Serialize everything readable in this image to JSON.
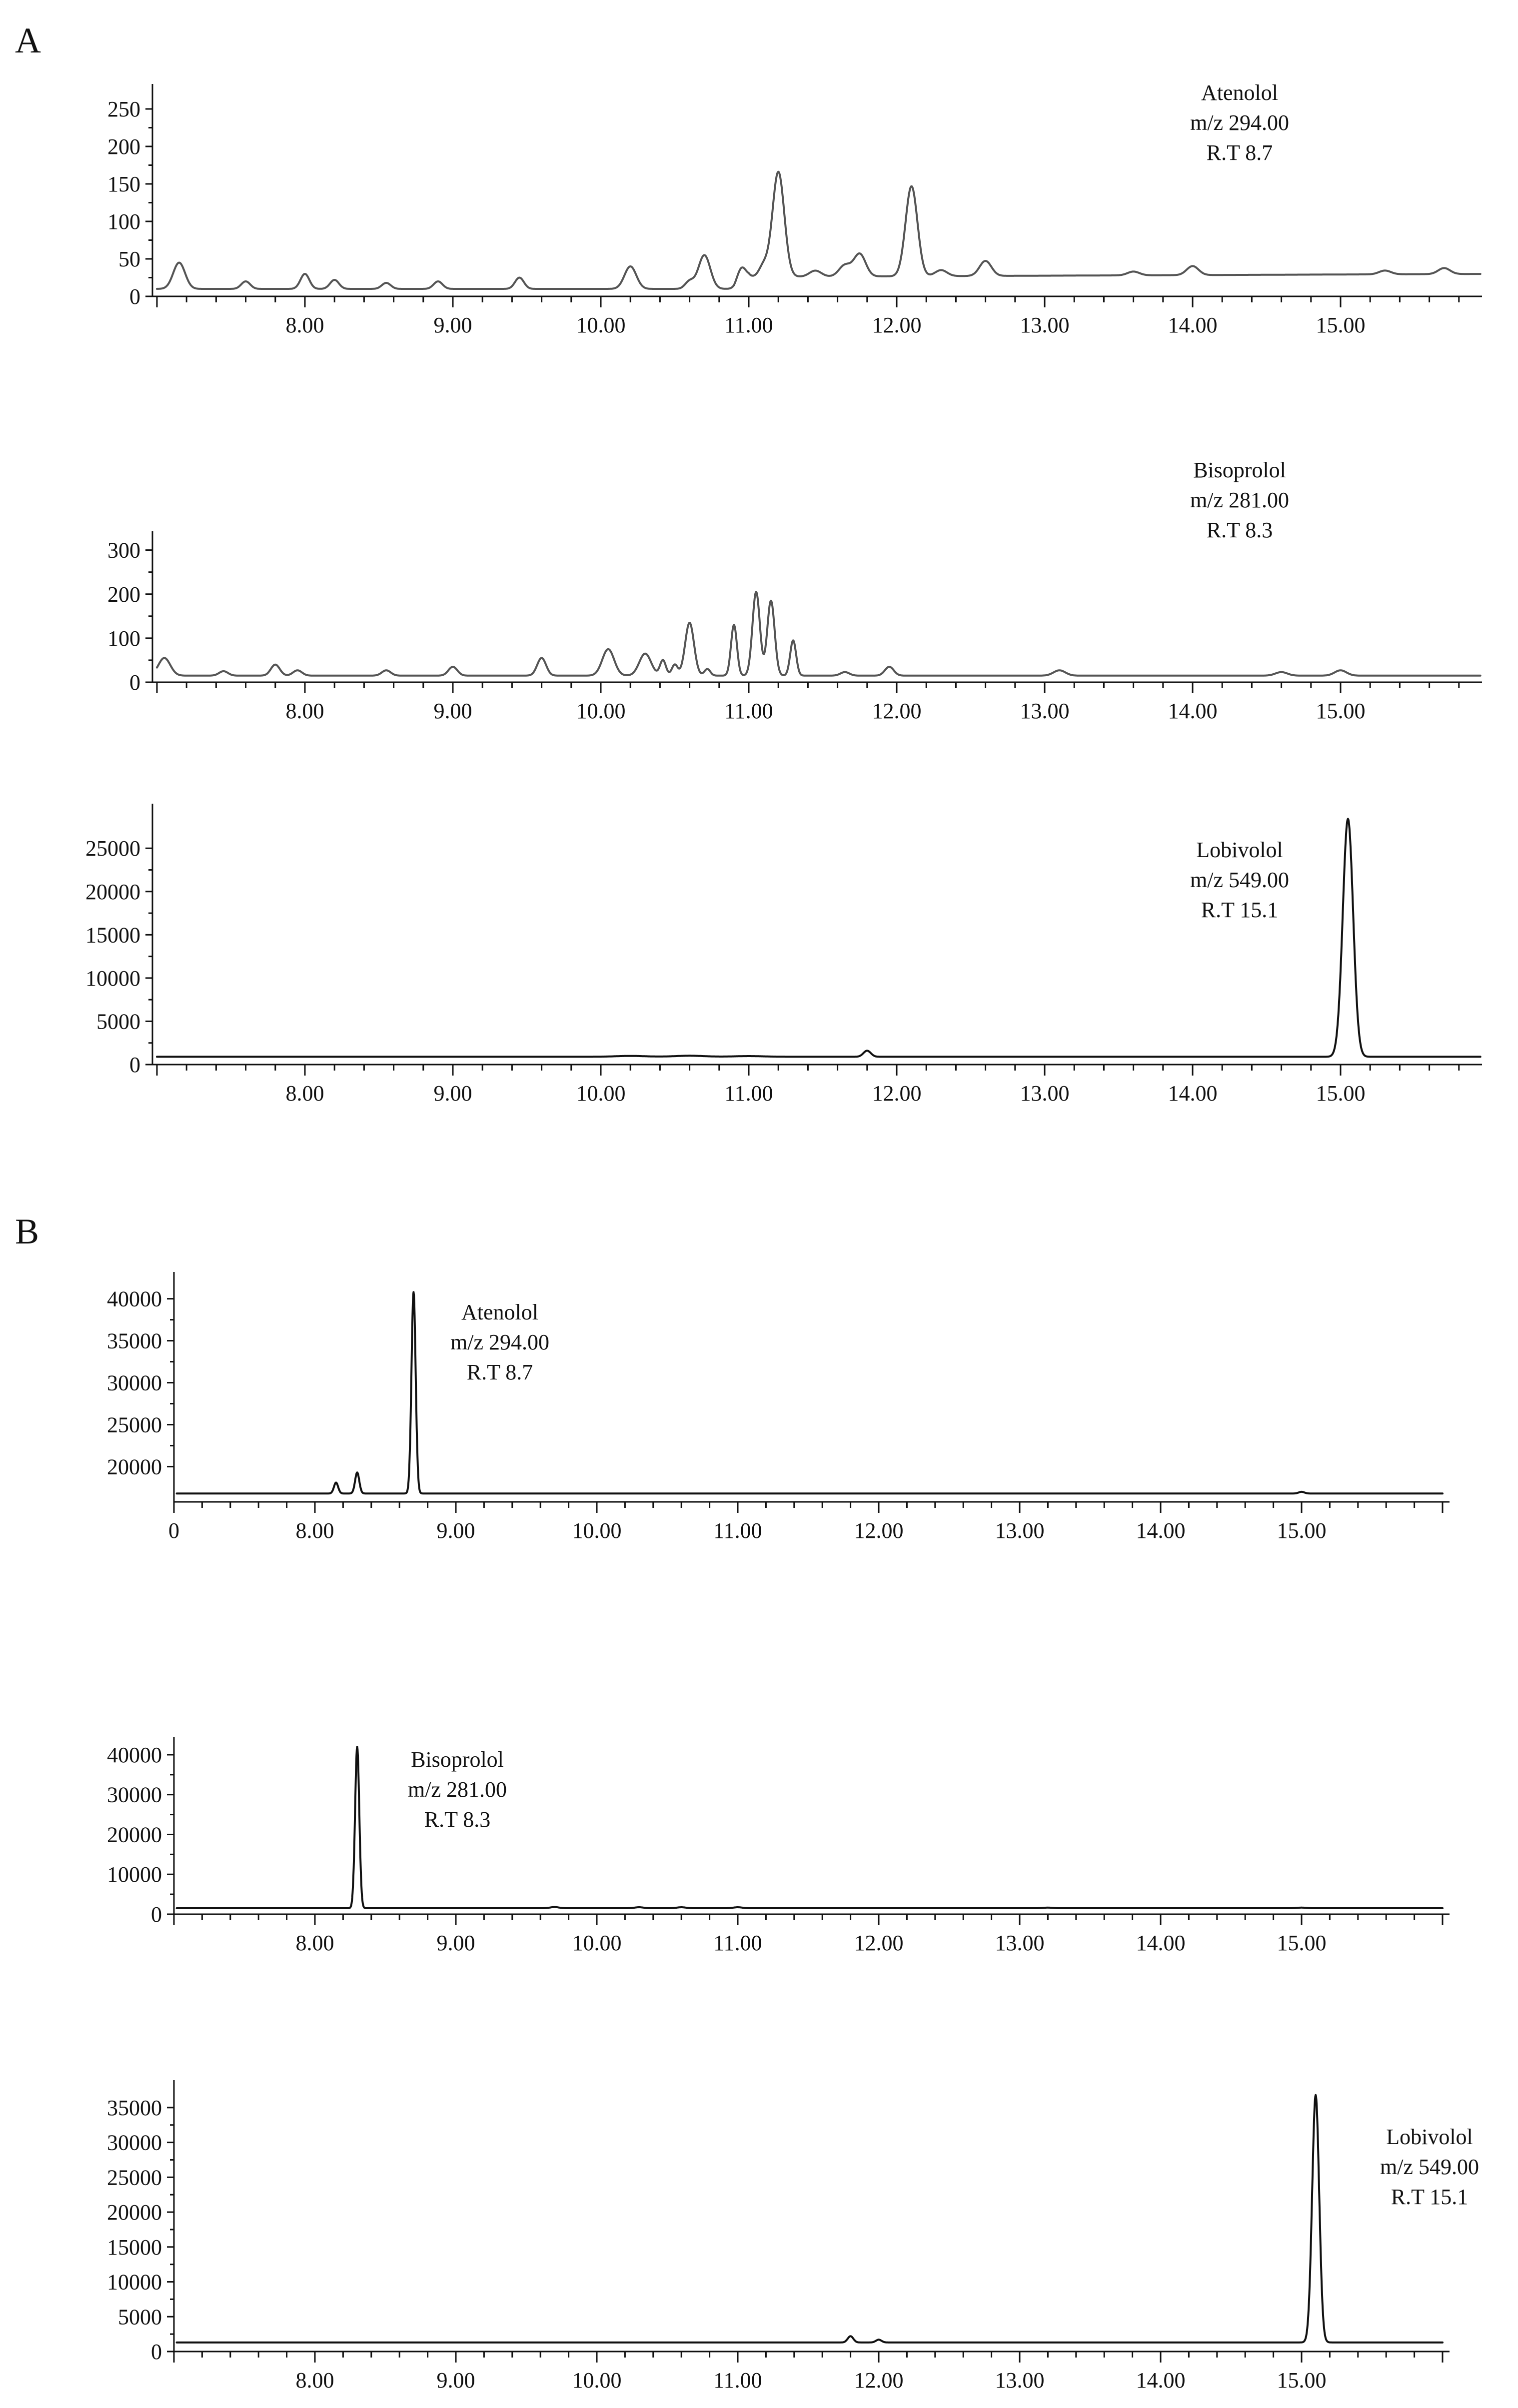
{
  "panels": [
    {
      "label": "A"
    },
    {
      "label": "B"
    }
  ],
  "chart_data": [
    {
      "type": "line",
      "panel": "A",
      "x_ticks": [
        "8.00",
        "9.00",
        "10.00",
        "11.00",
        "12.00",
        "13.00",
        "14.00",
        "15.00"
      ],
      "y_ticks": [
        "0",
        "50",
        "100",
        "150",
        "200",
        "250"
      ],
      "xlim": [
        7.0,
        16.0
      ],
      "ylim": [
        0,
        270
      ],
      "line_color": "#555555",
      "annotation": [
        "Atenolol",
        "m/z 294.00",
        "R.T 8.7"
      ],
      "series": [
        {
          "baseline": [
            [
              7.0,
              10
            ],
            [
              10.9,
              10
            ],
            [
              11.0,
              26
            ],
            [
              16.0,
              30
            ]
          ],
          "peaks": [
            [
              7.15,
              35,
              0.04
            ],
            [
              7.6,
              10,
              0.03
            ],
            [
              8.0,
              20,
              0.03
            ],
            [
              8.2,
              12,
              0.03
            ],
            [
              8.55,
              8,
              0.03
            ],
            [
              8.9,
              10,
              0.03
            ],
            [
              9.45,
              15,
              0.03
            ],
            [
              10.2,
              30,
              0.04
            ],
            [
              10.6,
              10,
              0.03
            ],
            [
              10.7,
              45,
              0.04
            ],
            [
              10.95,
              20,
              0.03
            ],
            [
              11.1,
              15,
              0.03
            ],
            [
              11.2,
              140,
              0.04
            ],
            [
              11.45,
              8,
              0.04
            ],
            [
              11.65,
              15,
              0.04
            ],
            [
              11.75,
              30,
              0.04
            ],
            [
              12.1,
              120,
              0.04
            ],
            [
              12.3,
              8,
              0.04
            ],
            [
              12.6,
              20,
              0.04
            ],
            [
              13.6,
              5,
              0.04
            ],
            [
              14.0,
              12,
              0.04
            ],
            [
              15.3,
              5,
              0.04
            ],
            [
              15.7,
              8,
              0.04
            ]
          ]
        }
      ]
    },
    {
      "type": "line",
      "panel": "A",
      "x_ticks": [
        "8.00",
        "9.00",
        "10.00",
        "11.00",
        "12.00",
        "13.00",
        "14.00",
        "15.00"
      ],
      "y_ticks": [
        "0",
        "100",
        "200",
        "300"
      ],
      "xlim": [
        7.0,
        16.0
      ],
      "ylim": [
        0,
        320
      ],
      "line_color": "#555555",
      "annotation": [
        "Bisoprolol",
        "m/z 281.00",
        "R.T 8.3"
      ],
      "series": [
        {
          "baseline": [
            [
              7.0,
              15
            ],
            [
              16.0,
              15
            ]
          ],
          "peaks": [
            [
              7.05,
              40,
              0.04
            ],
            [
              7.45,
              10,
              0.03
            ],
            [
              7.8,
              25,
              0.03
            ],
            [
              7.95,
              12,
              0.03
            ],
            [
              8.55,
              12,
              0.03
            ],
            [
              9.0,
              20,
              0.03
            ],
            [
              9.6,
              40,
              0.03
            ],
            [
              10.05,
              60,
              0.04
            ],
            [
              10.3,
              50,
              0.04
            ],
            [
              10.42,
              35,
              0.02
            ],
            [
              10.5,
              25,
              0.02
            ],
            [
              10.6,
              120,
              0.03
            ],
            [
              10.72,
              15,
              0.02
            ],
            [
              10.9,
              115,
              0.02
            ],
            [
              11.05,
              190,
              0.025
            ],
            [
              11.15,
              170,
              0.025
            ],
            [
              11.3,
              80,
              0.02
            ],
            [
              11.65,
              8,
              0.03
            ],
            [
              11.95,
              20,
              0.03
            ],
            [
              13.1,
              12,
              0.04
            ],
            [
              14.6,
              8,
              0.04
            ],
            [
              15.0,
              12,
              0.04
            ]
          ]
        }
      ]
    },
    {
      "type": "line",
      "panel": "A",
      "x_ticks": [
        "8.00",
        "9.00",
        "10.00",
        "11.00",
        "12.00",
        "13.00",
        "14.00",
        "15.00"
      ],
      "y_ticks": [
        "0",
        "5000",
        "10000",
        "15000",
        "20000",
        "25000"
      ],
      "xlim": [
        7.0,
        16.0
      ],
      "ylim": [
        0,
        29000
      ],
      "line_color": "#111111",
      "annotation": [
        "Lobivolol",
        "m/z 549.00",
        "R.T 15.1"
      ],
      "series": [
        {
          "baseline": [
            [
              7.0,
              900
            ],
            [
              16.0,
              900
            ]
          ],
          "peaks": [
            [
              10.2,
              100,
              0.1
            ],
            [
              10.6,
              120,
              0.1
            ],
            [
              11.0,
              80,
              0.1
            ],
            [
              11.8,
              700,
              0.025
            ],
            [
              15.05,
              27500,
              0.035
            ]
          ]
        }
      ]
    },
    {
      "type": "line",
      "panel": "B",
      "x_ticks": [
        "0",
        "8.00",
        "9.00",
        "10.00",
        "11.00",
        "12.00",
        "13.00",
        "14.00",
        "15.00"
      ],
      "y_ticks": [
        "20000",
        "25000",
        "30000",
        "35000",
        "40000"
      ],
      "xlim": [
        7.0,
        16.0
      ],
      "ylim": [
        15800,
        42000
      ],
      "line_color": "#111111",
      "annotation": [
        "Atenolol",
        "m/z 294.00",
        "R.T 8.7"
      ],
      "series": [
        {
          "baseline": [
            [
              7.0,
              16800
            ],
            [
              16.0,
              16800
            ]
          ],
          "peaks": [
            [
              8.15,
              1300,
              0.015
            ],
            [
              8.3,
              2500,
              0.015
            ],
            [
              8.7,
              24000,
              0.015
            ],
            [
              15.0,
              200,
              0.02
            ]
          ]
        }
      ]
    },
    {
      "type": "line",
      "panel": "B",
      "x_ticks": [
        "8.00",
        "9.00",
        "10.00",
        "11.00",
        "12.00",
        "13.00",
        "14.00",
        "15.00"
      ],
      "y_ticks": [
        "0",
        "10000",
        "20000",
        "30000",
        "40000"
      ],
      "xlim": [
        7.0,
        16.0
      ],
      "ylim": [
        0,
        42000
      ],
      "line_color": "#111111",
      "annotation": [
        "Bisoprolol",
        "m/z 281.00",
        "R.T 8.3"
      ],
      "series": [
        {
          "baseline": [
            [
              7.0,
              1500
            ],
            [
              16.0,
              1500
            ]
          ],
          "peaks": [
            [
              8.3,
              40500,
              0.015
            ],
            [
              9.7,
              300,
              0.03
            ],
            [
              10.3,
              250,
              0.03
            ],
            [
              10.6,
              250,
              0.03
            ],
            [
              11.0,
              250,
              0.03
            ],
            [
              13.2,
              150,
              0.03
            ],
            [
              15.0,
              150,
              0.03
            ]
          ]
        }
      ]
    },
    {
      "type": "line",
      "panel": "B",
      "x_ticks": [
        "8.00",
        "9.00",
        "10.00",
        "11.00",
        "12.00",
        "13.00",
        "14.00",
        "15.00"
      ],
      "y_ticks": [
        "0",
        "5000",
        "10000",
        "15000",
        "20000",
        "25000",
        "30000",
        "35000"
      ],
      "xlim": [
        7.0,
        16.0
      ],
      "ylim": [
        0,
        37500
      ],
      "line_color": "#111111",
      "annotation": [
        "Lobivolol",
        "m/z 549.00",
        "R.T 15.1"
      ],
      "series": [
        {
          "baseline": [
            [
              7.0,
              1300
            ],
            [
              16.0,
              1300
            ]
          ],
          "peaks": [
            [
              11.8,
              900,
              0.02
            ],
            [
              12.0,
              400,
              0.02
            ],
            [
              15.1,
              35500,
              0.025
            ]
          ]
        }
      ]
    }
  ]
}
